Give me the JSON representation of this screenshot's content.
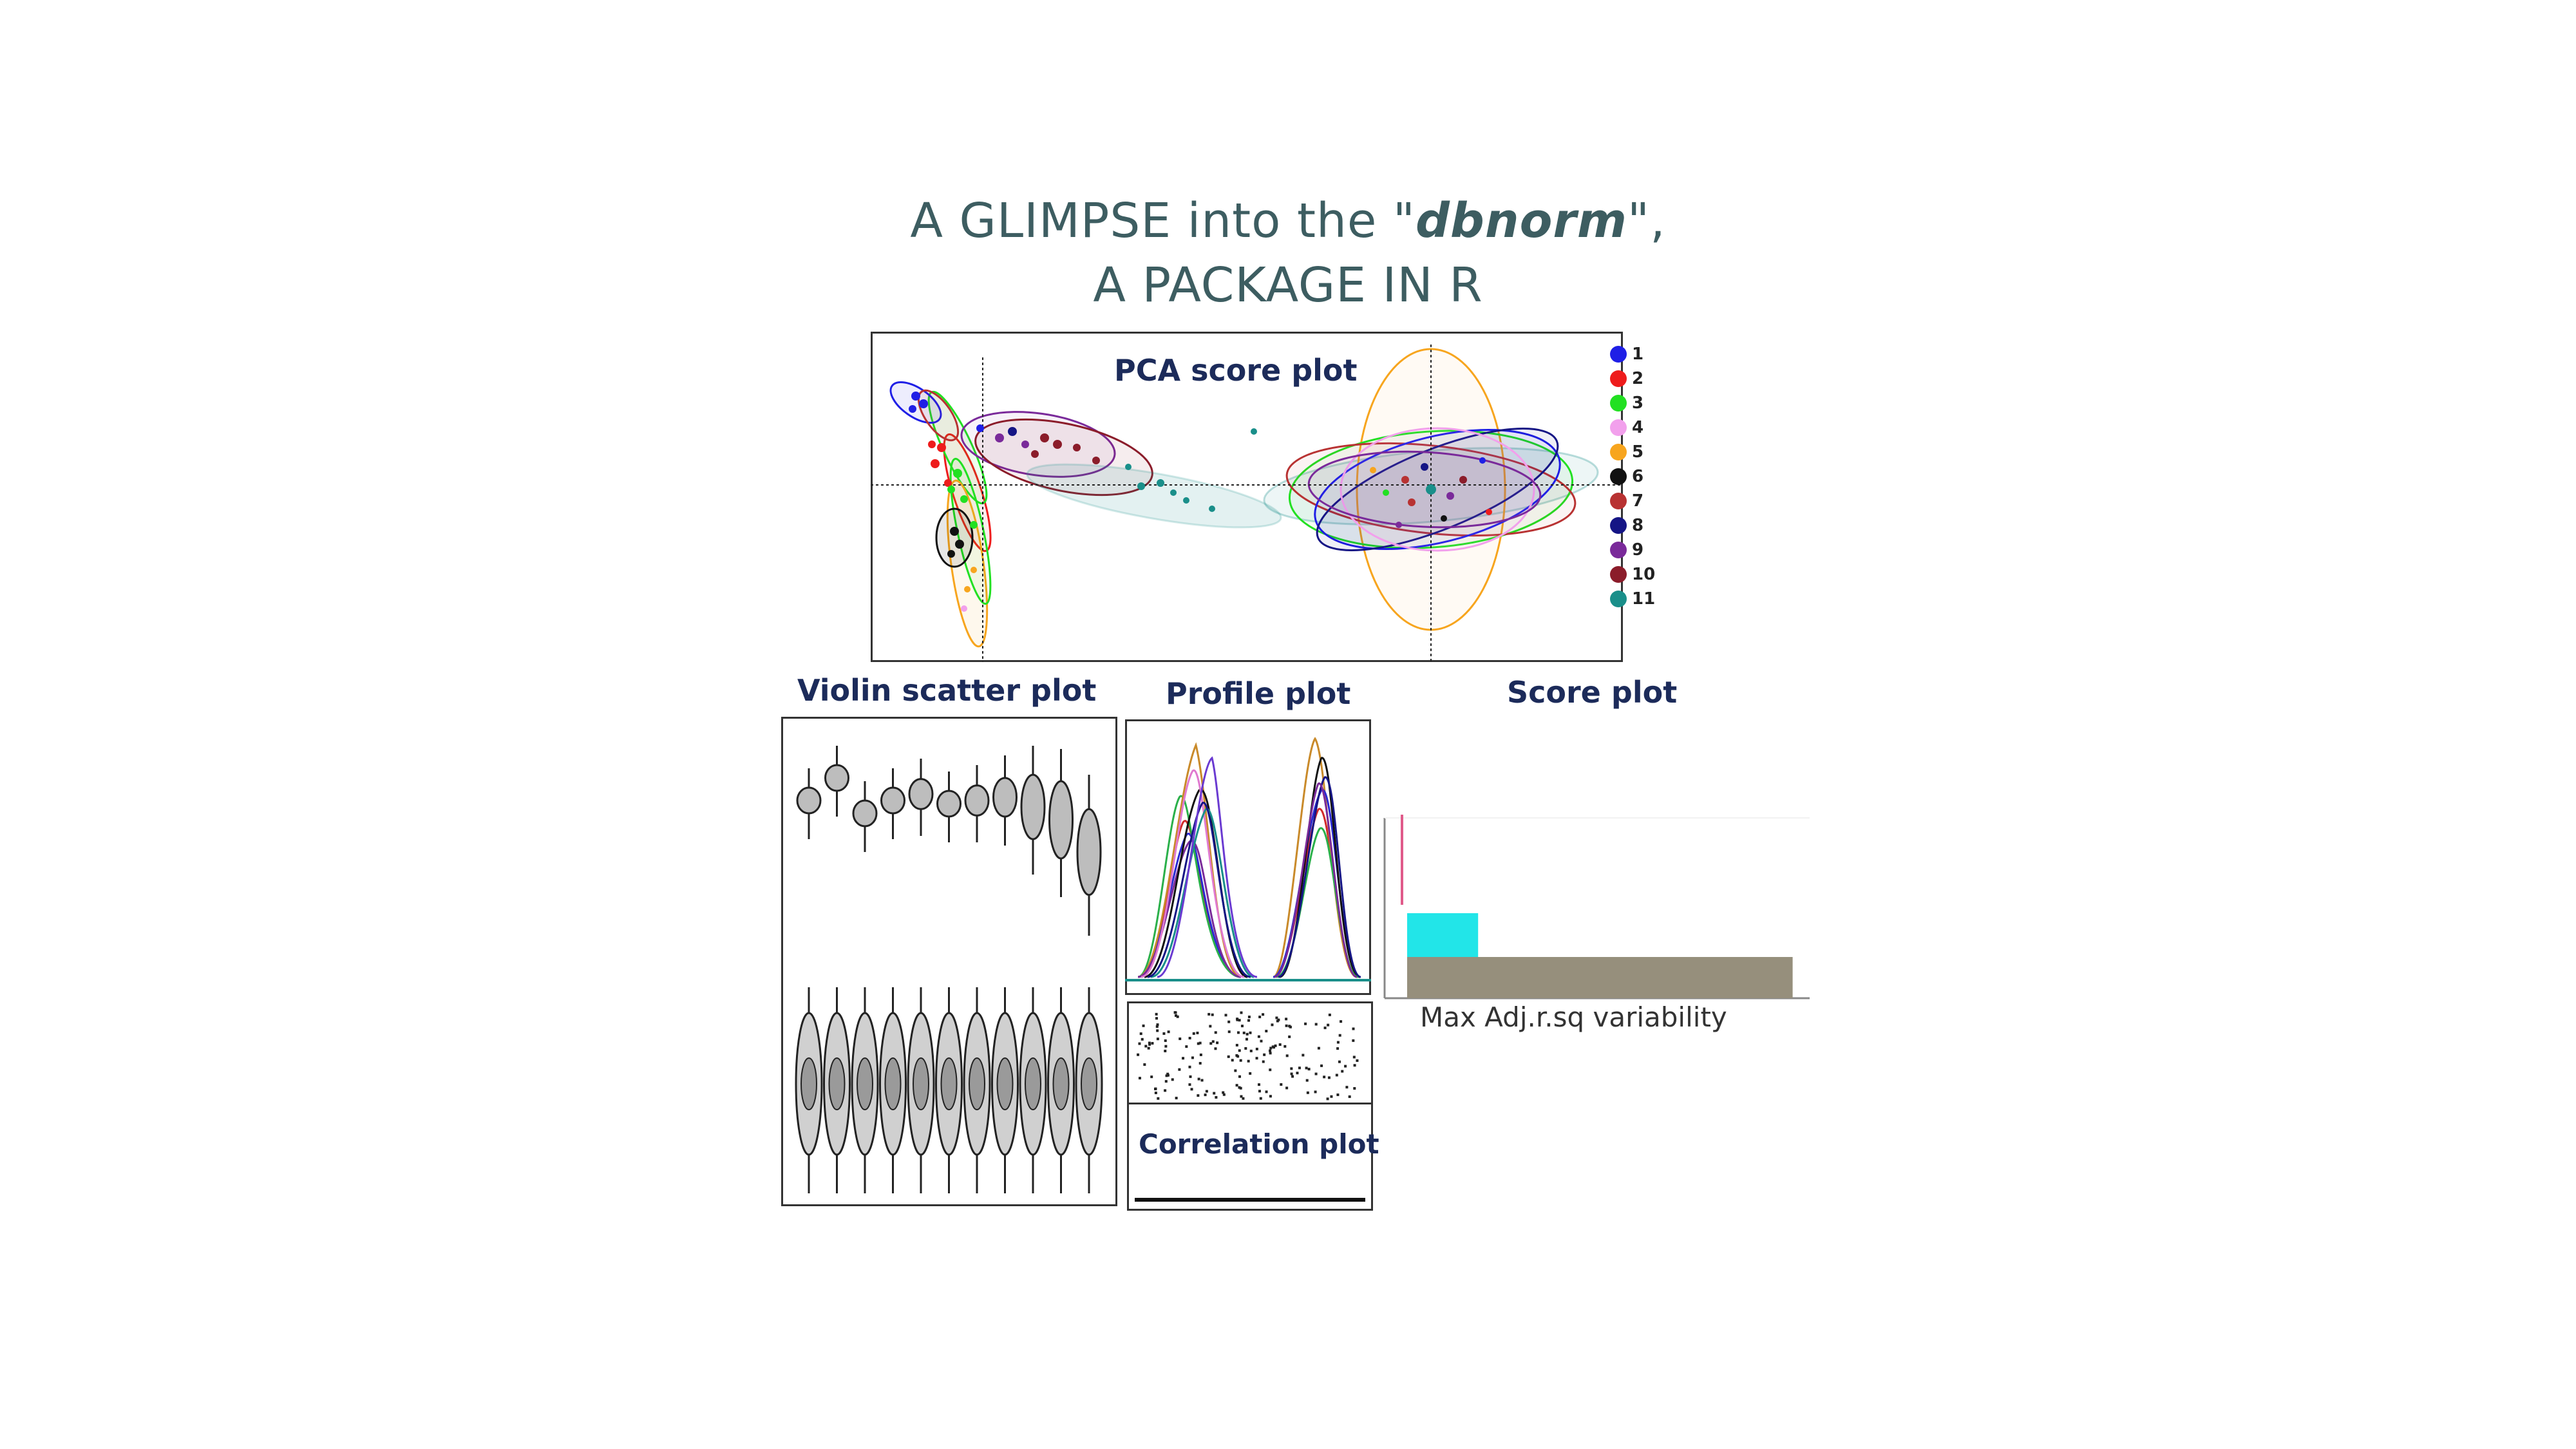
{
  "title": {
    "line1_pre": "A GLIMPSE into the \"",
    "line1_em": "dbnorm",
    "line1_post": "\",",
    "line2": "A PACKAGE IN R"
  },
  "labels": {
    "pca": "PCA score plot",
    "violin": "Violin scatter plot",
    "profile": "Profile plot",
    "score": "Score plot",
    "correlation": "Correlation plot",
    "score_xlabel": "Max Adj.r.sq variability"
  },
  "legend": [
    {
      "label": "1",
      "color": "#1f1fe6"
    },
    {
      "label": "2",
      "color": "#ee1c1c"
    },
    {
      "label": "3",
      "color": "#22e022"
    },
    {
      "label": "4",
      "color": "#f2a0ec"
    },
    {
      "label": "5",
      "color": "#f7a51e"
    },
    {
      "label": "6",
      "color": "#111111"
    },
    {
      "label": "7",
      "color": "#b83232"
    },
    {
      "label": "8",
      "color": "#151585"
    },
    {
      "label": "9",
      "color": "#7a2a9a"
    },
    {
      "label": "10",
      "color": "#8b1c2a"
    },
    {
      "label": "11",
      "color": "#1a8f8a"
    }
  ],
  "chart_data": {
    "type": "bar",
    "orientation": "horizontal",
    "xlabel": "Max Adj.r.sq variability",
    "bars": [
      {
        "value": 0.04,
        "color": "#e05a8a"
      },
      {
        "value": 0.22,
        "color": "#22e5e8"
      },
      {
        "value": 0.96,
        "color": "#968f7c"
      }
    ],
    "xlim": [
      0,
      1
    ]
  }
}
